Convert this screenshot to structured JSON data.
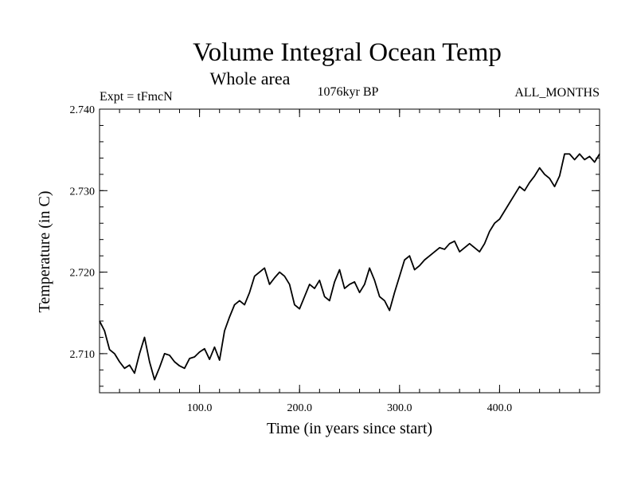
{
  "chart_data": {
    "type": "line",
    "title": "Volume Integral Ocean Temp",
    "subtitle": "Whole area",
    "experiment_label": "Expt = tFmcN",
    "period_label": "1076kyr BP",
    "months_label": "ALL_MONTHS",
    "xlabel": "Time (in years since start)",
    "ylabel": "Temperature (in C)",
    "xlim": [
      0,
      500
    ],
    "ylim": [
      2.7052,
      2.74
    ],
    "x_ticks": [
      {
        "value": 100,
        "label": "100.0"
      },
      {
        "value": 200,
        "label": "200.0"
      },
      {
        "value": 300,
        "label": "300.0"
      },
      {
        "value": 400,
        "label": "400.0"
      }
    ],
    "y_ticks": [
      {
        "value": 2.71,
        "label": "2.710"
      },
      {
        "value": 2.72,
        "label": "2.720"
      },
      {
        "value": 2.73,
        "label": "2.730"
      },
      {
        "value": 2.74,
        "label": "2.740"
      }
    ],
    "x_minor_step": 20,
    "y_minor_step": 0.002,
    "grid": false,
    "series": [
      {
        "name": "Volume integral ocean temperature",
        "color": "#000000",
        "x": [
          0,
          5,
          10,
          15,
          20,
          25,
          30,
          35,
          40,
          45,
          50,
          55,
          60,
          65,
          70,
          75,
          80,
          85,
          90,
          95,
          100,
          105,
          110,
          115,
          120,
          125,
          130,
          135,
          140,
          145,
          150,
          155,
          160,
          165,
          170,
          175,
          180,
          185,
          190,
          195,
          200,
          205,
          210,
          215,
          220,
          225,
          230,
          235,
          240,
          245,
          250,
          255,
          260,
          265,
          270,
          275,
          280,
          285,
          290,
          295,
          300,
          305,
          310,
          315,
          320,
          325,
          330,
          335,
          340,
          345,
          350,
          355,
          360,
          365,
          370,
          375,
          380,
          385,
          390,
          395,
          400,
          405,
          410,
          415,
          420,
          425,
          430,
          435,
          440,
          445,
          450,
          455,
          460,
          465,
          470,
          475,
          480,
          485,
          490,
          495,
          500
        ],
        "values": [
          2.714,
          2.7128,
          2.7105,
          2.71,
          2.709,
          2.7082,
          2.7086,
          2.7076,
          2.71,
          2.712,
          2.709,
          2.7068,
          2.7083,
          2.71,
          2.7098,
          2.709,
          2.7085,
          2.7082,
          2.7094,
          2.7096,
          2.7102,
          2.7106,
          2.7093,
          2.7108,
          2.7092,
          2.7128,
          2.7145,
          2.716,
          2.7165,
          2.716,
          2.7175,
          2.7195,
          2.72,
          2.7205,
          2.7185,
          2.7193,
          2.72,
          2.7195,
          2.7185,
          2.716,
          2.7155,
          2.717,
          2.7185,
          2.718,
          2.719,
          2.717,
          2.7165,
          2.7188,
          2.7203,
          2.718,
          2.7185,
          2.7188,
          2.7175,
          2.7185,
          2.7205,
          2.719,
          2.717,
          2.7165,
          2.7153,
          2.7175,
          2.7195,
          2.7215,
          2.722,
          2.7203,
          2.7208,
          2.7215,
          2.722,
          2.7225,
          2.723,
          2.7228,
          2.7235,
          2.7238,
          2.7225,
          2.723,
          2.7235,
          2.723,
          2.7225,
          2.7235,
          2.725,
          2.726,
          2.7265,
          2.7275,
          2.7285,
          2.7295,
          2.7305,
          2.73,
          2.731,
          2.7318,
          2.7328,
          2.732,
          2.7315,
          2.7305,
          2.7318,
          2.7345,
          2.7345,
          2.7338,
          2.7345,
          2.7338,
          2.7342,
          2.7335,
          2.7345
        ]
      }
    ]
  }
}
